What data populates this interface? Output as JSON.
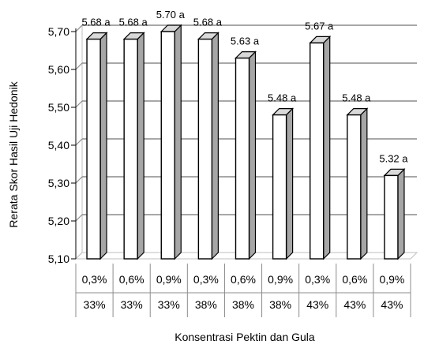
{
  "chart_data": {
    "type": "bar",
    "style": "3d-column",
    "categories": [
      {
        "pektin": "0,3%",
        "gula": "33%"
      },
      {
        "pektin": "0,6%",
        "gula": "33%"
      },
      {
        "pektin": "0,9%",
        "gula": "33%"
      },
      {
        "pektin": "0,3%",
        "gula": "38%"
      },
      {
        "pektin": "0,6%",
        "gula": "38%"
      },
      {
        "pektin": "0,9%",
        "gula": "38%"
      },
      {
        "pektin": "0,3%",
        "gula": "43%"
      },
      {
        "pektin": "0,6%",
        "gula": "43%"
      },
      {
        "pektin": "0,9%",
        "gula": "43%"
      }
    ],
    "values": [
      5.68,
      5.68,
      5.7,
      5.68,
      5.63,
      5.48,
      5.67,
      5.48,
      5.32
    ],
    "data_labels": [
      "5.68 a",
      "5.68 a",
      "5.70 a",
      "5.68 a",
      "5.63 a",
      "5.48 a",
      "5.67 a",
      "5.48 a",
      "5.32 a"
    ],
    "title": "",
    "xlabel": "Konsentrasi Pektin dan Gula",
    "ylabel": "Rerata Skor  Hasil Uji Hedonik",
    "ylim": [
      5.1,
      5.7
    ],
    "yticks": [
      "5,10",
      "5,20",
      "5,30",
      "5,40",
      "5,50",
      "5,60",
      "5,70"
    ],
    "grid": true,
    "legend": "none",
    "colors": {
      "bar_front": "#ffffff",
      "bar_side": "#a6a6a6",
      "bar_top": "#d9d9d9",
      "outline": "#000000",
      "grid": "#8c8c8c",
      "wall": "#bfbfbf"
    }
  }
}
